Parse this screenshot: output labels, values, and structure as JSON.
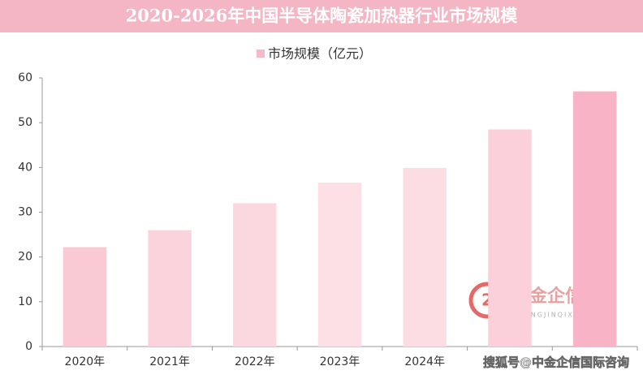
{
  "chart_data": {
    "type": "bar",
    "title": "2020-2026年中国半导体陶瓷加热器行业市场规模",
    "categories": [
      "2020年",
      "2021年",
      "2022年",
      "2023年",
      "2024年",
      null,
      null
    ],
    "series": [
      {
        "name": "市场规模（亿元）",
        "color": "#f7b8c8",
        "values": [
          22.2,
          26,
          32,
          36.6,
          39.9,
          48.5,
          57
        ],
        "colors": [
          "#f9c9d4",
          "#fbd3dc",
          "#fbd8e0",
          "#fddfe6",
          "#fcdde4",
          "#fbd0da",
          "#f8b3c6"
        ]
      }
    ],
    "ylim": [
      0,
      60
    ],
    "yticks": [
      0,
      10,
      20,
      30,
      40,
      50,
      60
    ],
    "grid": false,
    "legend": "top",
    "watermark": {
      "logo": "中金企信",
      "logo_sub": "ZHONGJINQIXIN",
      "text": "搜狐号@中金企信国际咨询"
    }
  }
}
